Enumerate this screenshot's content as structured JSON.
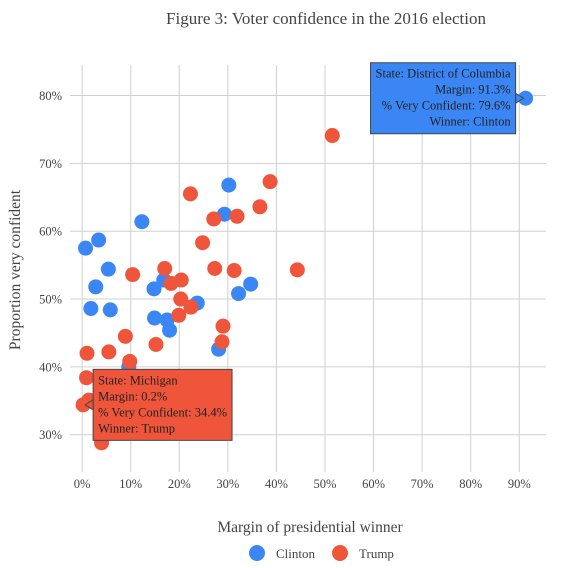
{
  "chart_data": {
    "type": "scatter",
    "title": "Figure 3: Voter confidence in the 2016 election",
    "xlabel": "Margin of presidential winner",
    "ylabel": "Proportion very confident",
    "xlim": [
      -2.5,
      95.5
    ],
    "ylim": [
      24.5,
      84.5
    ],
    "x_ticks": [
      0,
      10,
      20,
      30,
      40,
      50,
      60,
      70,
      80,
      90
    ],
    "x_tick_labels": [
      "0%",
      "10%",
      "20%",
      "30%",
      "40%",
      "50%",
      "60%",
      "70%",
      "80%",
      "90%"
    ],
    "y_ticks": [
      30,
      40,
      50,
      60,
      70,
      80
    ],
    "y_tick_labels": [
      "30%",
      "40%",
      "50%",
      "60%",
      "70%",
      "80%"
    ],
    "grid": true,
    "legend_position": "bottom-center",
    "series": [
      {
        "name": "Clinton",
        "color": "#3b86f5",
        "points": [
          {
            "x": 91.3,
            "y": 79.6
          },
          {
            "x": 30.2,
            "y": 66.8
          },
          {
            "x": 29.3,
            "y": 62.5
          },
          {
            "x": 12.3,
            "y": 61.4
          },
          {
            "x": 3.4,
            "y": 58.7
          },
          {
            "x": 0.7,
            "y": 57.5
          },
          {
            "x": 5.4,
            "y": 54.4
          },
          {
            "x": 16.8,
            "y": 52.8
          },
          {
            "x": 2.8,
            "y": 51.8
          },
          {
            "x": 14.8,
            "y": 51.5
          },
          {
            "x": 34.7,
            "y": 52.2
          },
          {
            "x": 32.2,
            "y": 50.8
          },
          {
            "x": 23.7,
            "y": 49.4
          },
          {
            "x": 1.8,
            "y": 48.6
          },
          {
            "x": 5.8,
            "y": 48.4
          },
          {
            "x": 14.9,
            "y": 47.2
          },
          {
            "x": 17.5,
            "y": 46.9
          },
          {
            "x": 18.0,
            "y": 45.4
          },
          {
            "x": 28.1,
            "y": 42.6
          },
          {
            "x": 9.6,
            "y": 40.0
          }
        ]
      },
      {
        "name": "Trump",
        "color": "#ef553b",
        "points": [
          {
            "x": 51.5,
            "y": 74.1
          },
          {
            "x": 38.7,
            "y": 67.3
          },
          {
            "x": 22.3,
            "y": 65.5
          },
          {
            "x": 36.6,
            "y": 63.6
          },
          {
            "x": 31.9,
            "y": 62.2
          },
          {
            "x": 27.1,
            "y": 61.8
          },
          {
            "x": 24.8,
            "y": 58.3
          },
          {
            "x": 17.0,
            "y": 54.5
          },
          {
            "x": 27.3,
            "y": 54.5
          },
          {
            "x": 31.3,
            "y": 54.2
          },
          {
            "x": 44.3,
            "y": 54.3
          },
          {
            "x": 10.4,
            "y": 53.6
          },
          {
            "x": 20.4,
            "y": 52.8
          },
          {
            "x": 18.3,
            "y": 52.3
          },
          {
            "x": 20.3,
            "y": 50.0
          },
          {
            "x": 22.4,
            "y": 48.8
          },
          {
            "x": 19.9,
            "y": 47.6
          },
          {
            "x": 29.0,
            "y": 46.0
          },
          {
            "x": 28.8,
            "y": 43.7
          },
          {
            "x": 15.2,
            "y": 43.3
          },
          {
            "x": 5.5,
            "y": 42.2
          },
          {
            "x": 1.0,
            "y": 42.0
          },
          {
            "x": 8.9,
            "y": 44.5
          },
          {
            "x": 9.8,
            "y": 40.8
          },
          {
            "x": 0.9,
            "y": 38.4
          },
          {
            "x": 1.4,
            "y": 35.1
          },
          {
            "x": 0.2,
            "y": 34.4
          },
          {
            "x": 4.0,
            "y": 28.8
          }
        ]
      }
    ],
    "annotations": [
      {
        "series": "Clinton",
        "point_index": 0,
        "background": "#3b86f5",
        "align": "right",
        "lines": [
          "State: District of Columbia",
          "Margin: 91.3%",
          "% Very Confident: 79.6%",
          "Winner: Clinton"
        ]
      },
      {
        "series": "Trump",
        "point_index": 26,
        "background": "#ef553b",
        "align": "left",
        "lines": [
          "State: Michigan",
          "Margin: 0.2%",
          "% Very Confident: 34.4%",
          "Winner: Trump"
        ]
      }
    ]
  }
}
